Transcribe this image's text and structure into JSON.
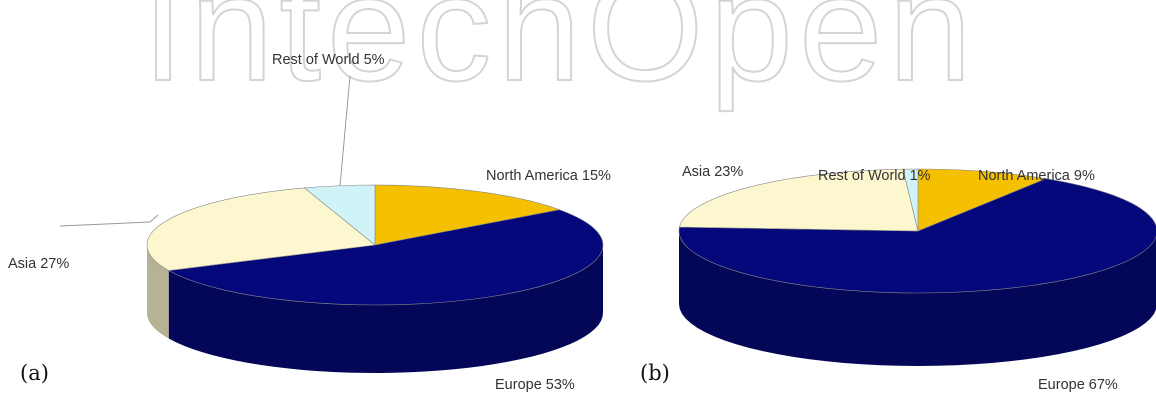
{
  "watermark": {
    "text": "IntechOpen",
    "color": "#d4d4d4"
  },
  "colors": {
    "North America": "#f5c000",
    "Europe": "#05087a",
    "Asia": "#fdf7cf",
    "Rest of World": "#cff3f6"
  },
  "chart_data": [
    {
      "type": "pie",
      "panel_label": "(a)",
      "title": "",
      "three_d": true,
      "slices": [
        {
          "label": "North America 15%",
          "category": "North America",
          "value": 15
        },
        {
          "label": "Europe 53%",
          "category": "Europe",
          "value": 53
        },
        {
          "label": "Asia 27%",
          "category": "Asia",
          "value": 27
        },
        {
          "label": "Rest of World 5%",
          "category": "Rest of World",
          "value": 5
        }
      ]
    },
    {
      "type": "pie",
      "panel_label": "(b)",
      "title": "",
      "three_d": true,
      "slices": [
        {
          "label": "North America 9%",
          "category": "North America",
          "value": 9
        },
        {
          "label": "Europe 67%",
          "category": "Europe",
          "value": 67
        },
        {
          "label": "Asia 23%",
          "category": "Asia",
          "value": 23
        },
        {
          "label": "Rest of World 1%",
          "category": "Rest of World",
          "value": 1
        }
      ]
    }
  ]
}
